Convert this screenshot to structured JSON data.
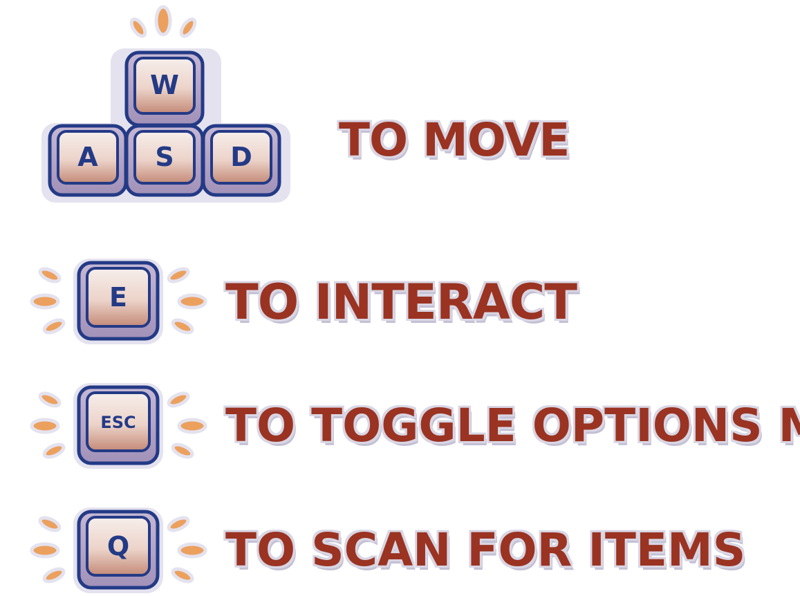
{
  "controls": [
    {
      "id": "move",
      "keys": [
        "W",
        "A",
        "S",
        "D"
      ],
      "action": "TO MOVE"
    },
    {
      "id": "interact",
      "keys": [
        "E"
      ],
      "action": "TO INTERACT"
    },
    {
      "id": "options",
      "keys": [
        "ESC"
      ],
      "action": "TO TOGGLE OPTIONS MENU"
    },
    {
      "id": "scan",
      "keys": [
        "Q"
      ],
      "action": "TO SCAN FOR ITEMS"
    }
  ],
  "colors": {
    "key_outline": "#233a86",
    "key_top": "#f5ece9",
    "key_bottom": "#c98f7d",
    "key_side": "#b6a6c6",
    "sticker_border": "#e4e2ee",
    "burst": "#eca05e",
    "label_text": "#9a3322"
  },
  "icons": {
    "key_cap": "keyboard-key-icon",
    "burst": "burst-lines-icon"
  }
}
